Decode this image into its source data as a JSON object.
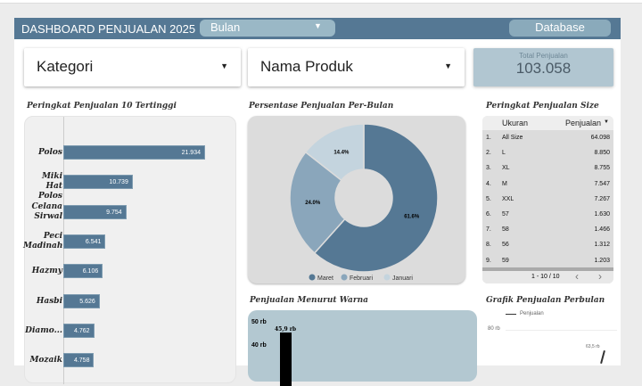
{
  "header": {
    "title": "DASHBOARD PENJUALAN 2025",
    "month_filter": "Bulan",
    "database_button": "Database"
  },
  "filters": {
    "kategori": "Kategori",
    "nama_produk": "Nama Produk"
  },
  "total": {
    "label": "Total Penjualan",
    "value": "103.058"
  },
  "sections": {
    "top10": "Peringkat Penjualan 10 Tertinggi",
    "pie": "Persentase Penjualan Per-Bulan",
    "size": "Peringkat Penjualan Size",
    "warna": "Penjualan Menurut Warna",
    "grafik": "Grafik Penjualan Perbulan"
  },
  "chart_data": [
    {
      "type": "bar",
      "orientation": "horizontal",
      "title": "Peringkat Penjualan 10 Tertinggi",
      "categories": [
        "Polos",
        "Miki Hat Polos",
        "Celana Sirwal",
        "Peci Madinah",
        "Hazmy",
        "Hasbi",
        "Diamo...",
        "Mozaik"
      ],
      "values": [
        21934,
        10739,
        9754,
        6541,
        6106,
        5626,
        4762,
        4758
      ],
      "value_labels": [
        "21.934",
        "10.739",
        "9.754",
        "6.541",
        "6.106",
        "5.626",
        "4.762",
        "4.758"
      ],
      "color": "#557894"
    },
    {
      "type": "pie",
      "donut": true,
      "title": "Persentase Penjualan Per-Bulan",
      "categories": [
        "Maret",
        "Februari",
        "Januari"
      ],
      "values": [
        61.6,
        24.0,
        14.4
      ],
      "labels": [
        "61.6%",
        "24.0%",
        "14.4%"
      ],
      "colors": [
        "#557894",
        "#8aa6bb",
        "#c4d4de"
      ],
      "legend": "bottom"
    },
    {
      "type": "bar",
      "title": "Penjualan Menurut Warna",
      "y_ticks": [
        "50 rb",
        "40 rb"
      ],
      "values": [
        45900
      ],
      "value_labels": [
        "45,9 rb"
      ],
      "color": "#000000"
    },
    {
      "type": "line",
      "title": "Grafik Penjualan Perbulan",
      "series": [
        {
          "name": "Penjualan"
        }
      ],
      "y_ticks": [
        "80 rb"
      ],
      "value_labels": [
        "63,5 rb"
      ]
    }
  ],
  "size_table": {
    "columns": [
      "Ukuran",
      "Penjualan"
    ],
    "rows": [
      [
        "1.",
        "All Size",
        "64.098"
      ],
      [
        "2.",
        "L",
        "8.850"
      ],
      [
        "3.",
        "XL",
        "8.755"
      ],
      [
        "4.",
        "M",
        "7.547"
      ],
      [
        "5.",
        "XXL",
        "7.267"
      ],
      [
        "6.",
        "57",
        "1.630"
      ],
      [
        "7.",
        "58",
        "1.466"
      ],
      [
        "8.",
        "56",
        "1.312"
      ],
      [
        "9.",
        "59",
        "1.203"
      ]
    ],
    "pagination": "1 - 10 / 10"
  }
}
